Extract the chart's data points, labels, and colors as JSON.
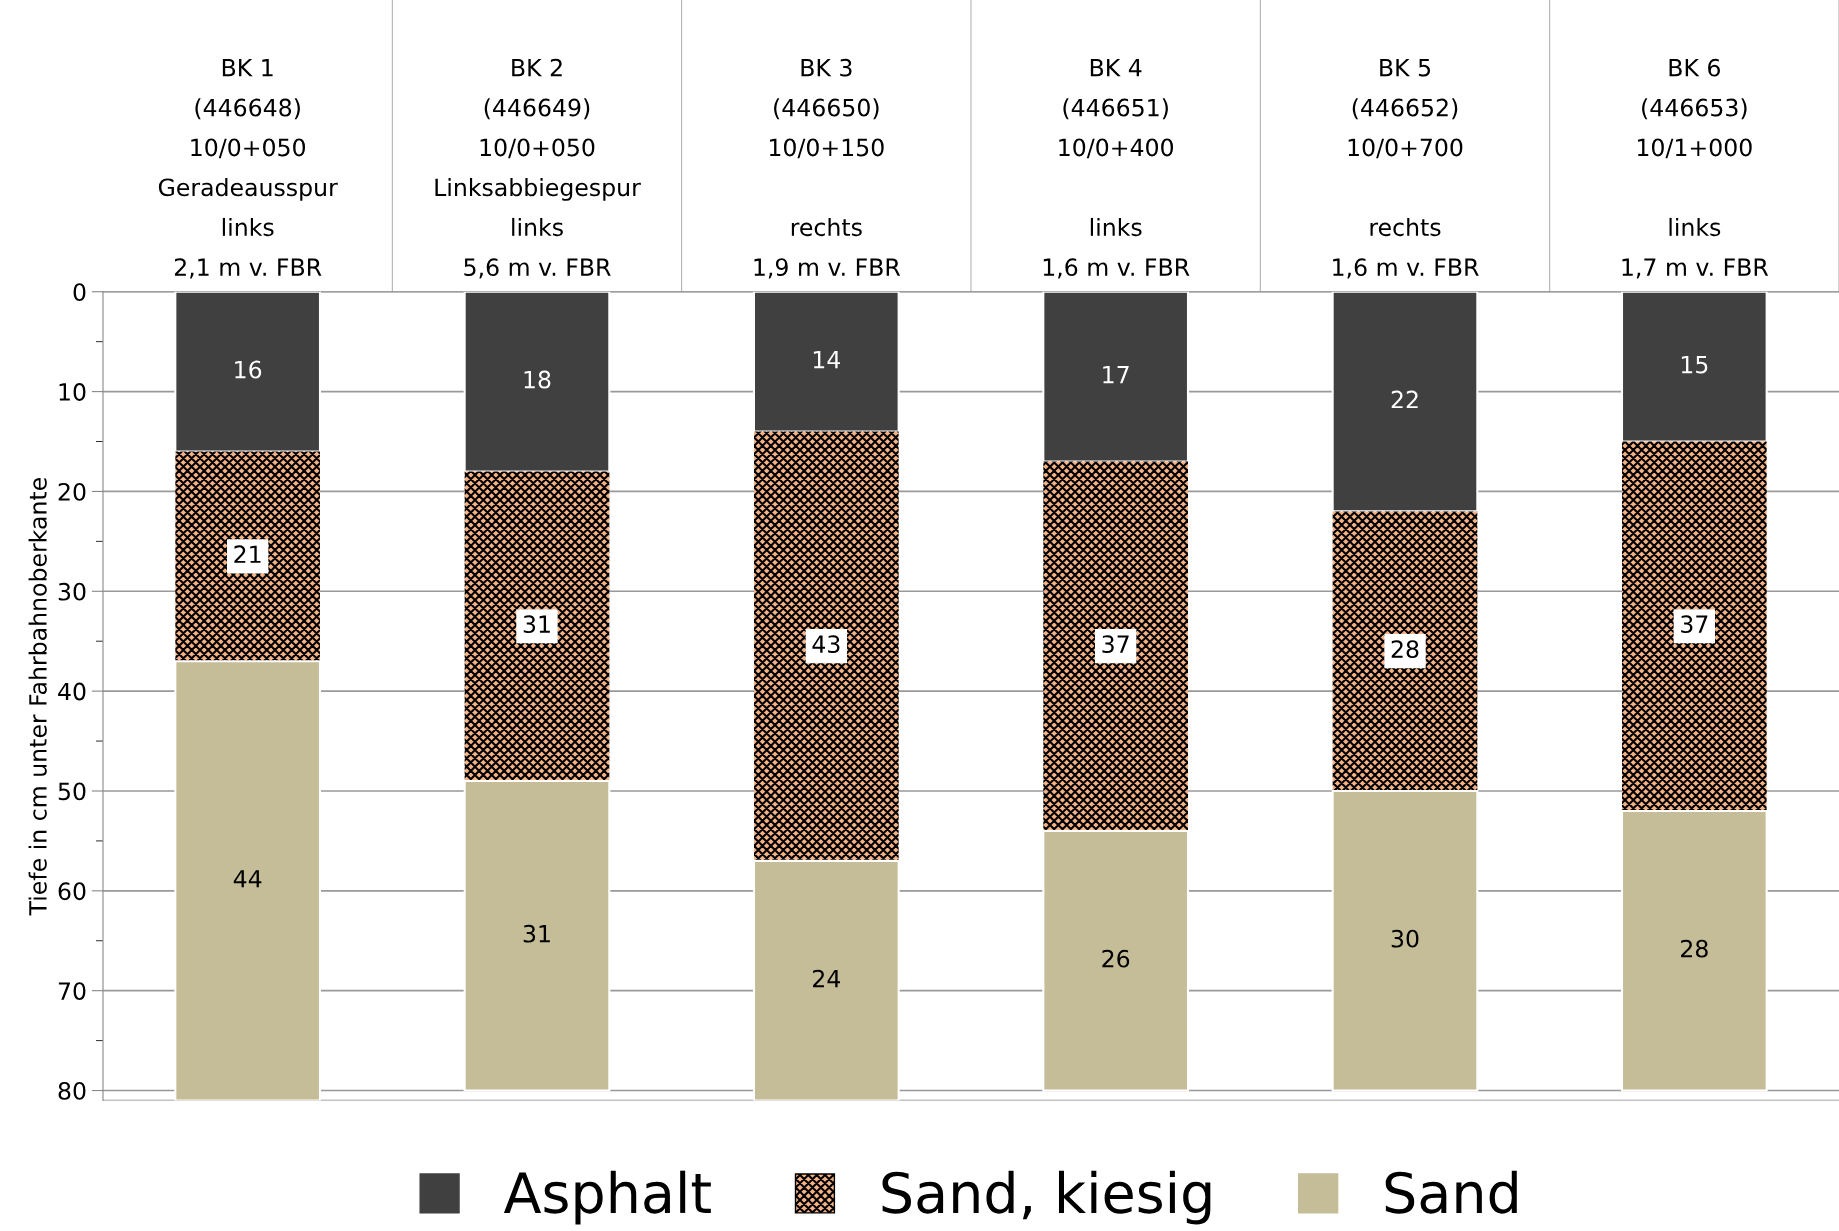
{
  "chart_data": {
    "type": "bar",
    "stacked": true,
    "ylabel": "Tiefe in cm unter Fahrbahnoberkante",
    "categories": [
      "BK 1\n(446648)\n10/0+050\nGeradeausspur\nlinks\n2,1 m v. FBR",
      "BK 2\n(446649)\n10/0+050\nLinksabbiegespur\nlinks\n5,6 m v. FBR",
      "BK 3\n(446650)\n10/0+150\n\nrechts\n1,9 m v. FBR",
      "BK 4\n(446651)\n10/0+400\n\nlinks\n1,6 m v. FBR",
      "BK 5\n(446652)\n10/0+700\n\nrechts\n1,6 m v. FBR",
      "BK 6\n(446653)\n10/1+000\n\nlinks\n1,7 m v. FBR"
    ],
    "series": [
      {
        "name": "Asphalt",
        "color": "#404040",
        "values": [
          16,
          18,
          14,
          17,
          22,
          15
        ]
      },
      {
        "name": "Sand, kiesig",
        "color": "#f4b183",
        "values": [
          21,
          31,
          43,
          37,
          28,
          37
        ]
      },
      {
        "name": "Sand",
        "color": "#c4bd97",
        "values": [
          44,
          31,
          24,
          26,
          30,
          28
        ]
      }
    ],
    "ylim": [
      81,
      0
    ],
    "yticks": [
      0,
      10,
      20,
      30,
      40,
      50,
      60,
      70,
      80
    ],
    "grid": "y",
    "legend": "bottom",
    "data_labels": true
  }
}
